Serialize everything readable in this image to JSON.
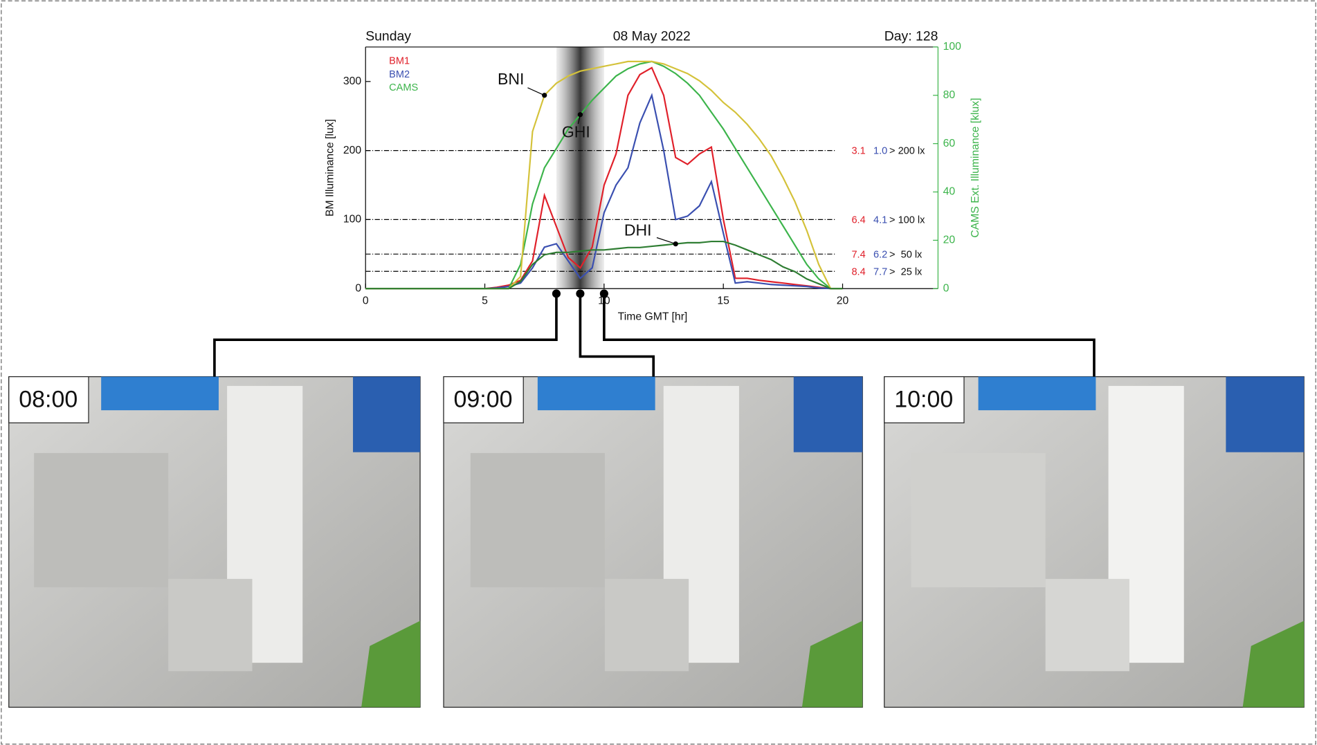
{
  "chart_data": {
    "type": "line",
    "header": {
      "left": "Sunday",
      "center": "08 May 2022",
      "right": "Day: 128"
    },
    "xlabel": "Time GMT [hr]",
    "ylabel": "BM Illuminance [lux]",
    "y2label": "CAMS Ext. Illuminance [klux]",
    "xlim": [
      0,
      24
    ],
    "xticks": [
      0,
      5,
      10,
      15,
      20
    ],
    "ylim": [
      0,
      350
    ],
    "yticks": [
      0,
      100,
      200,
      300
    ],
    "y2lim": [
      0,
      100
    ],
    "y2ticks": [
      0,
      20,
      40,
      60,
      80,
      100
    ],
    "y2color": "#3cb44b",
    "x": [
      0,
      0.5,
      1,
      1.5,
      2,
      2.5,
      3,
      3.5,
      4,
      4.5,
      5,
      5.5,
      6,
      6.5,
      7,
      7.5,
      8,
      8.5,
      9,
      9.5,
      10,
      10.5,
      11,
      11.5,
      12,
      12.5,
      13,
      13.5,
      14,
      14.5,
      15,
      15.5,
      16,
      16.5,
      17,
      17.5,
      18,
      18.5,
      19,
      19.5,
      20
    ],
    "legend": [
      {
        "name": "BM1",
        "color": "#e0202a"
      },
      {
        "name": "BM2",
        "color": "#3a4fb0"
      },
      {
        "name": "CAMS",
        "color": "#3cb44b"
      }
    ],
    "series": [
      {
        "name": "BM1",
        "color": "#e0202a",
        "values": [
          0,
          0,
          0,
          0,
          0,
          0,
          0,
          0,
          0,
          0,
          0,
          2,
          5,
          12,
          40,
          135,
          90,
          45,
          30,
          60,
          150,
          195,
          280,
          310,
          320,
          280,
          190,
          180,
          195,
          205,
          100,
          15,
          15,
          12,
          10,
          8,
          6,
          4,
          2,
          0,
          0
        ]
      },
      {
        "name": "BM2",
        "color": "#3a4fb0",
        "values": [
          0,
          0,
          0,
          0,
          0,
          0,
          0,
          0,
          0,
          0,
          0,
          1,
          3,
          8,
          30,
          60,
          65,
          40,
          15,
          30,
          110,
          150,
          175,
          240,
          280,
          200,
          100,
          105,
          120,
          155,
          80,
          8,
          10,
          8,
          6,
          5,
          4,
          3,
          1,
          0,
          0
        ]
      },
      {
        "name": "GHI",
        "color": "#3cb44b",
        "axis": "y2",
        "values": [
          0,
          0,
          0,
          0,
          0,
          0,
          0,
          0,
          0,
          0,
          0,
          0,
          0,
          10,
          35,
          50,
          58,
          66,
          72,
          78,
          83,
          88,
          91,
          93,
          94,
          92,
          89,
          85,
          80,
          73,
          66,
          58,
          50,
          42,
          34,
          26,
          18,
          10,
          4,
          0,
          0
        ]
      },
      {
        "name": "BNI",
        "color": "#d4c23a",
        "axis": "y2",
        "values": [
          0,
          0,
          0,
          0,
          0,
          0,
          0,
          0,
          0,
          0,
          0,
          0,
          0,
          5,
          65,
          80,
          85,
          88,
          90,
          91,
          92,
          93,
          94,
          94,
          94,
          93,
          91,
          89,
          86,
          82,
          77,
          73,
          68,
          62,
          55,
          46,
          36,
          24,
          10,
          0,
          0
        ]
      },
      {
        "name": "DHI",
        "color": "#2e7d32",
        "axis": "y2",
        "values": [
          0,
          0,
          0,
          0,
          0,
          0,
          0,
          0,
          0,
          0,
          0,
          0,
          0,
          3,
          10,
          14,
          15,
          15,
          15.5,
          16,
          16,
          16.5,
          17,
          17,
          17.5,
          18,
          18.5,
          19,
          19,
          19.5,
          19.5,
          18,
          16,
          14,
          12,
          9,
          7,
          4,
          2,
          0,
          0
        ]
      }
    ],
    "thresholds": [
      {
        "value": 200,
        "BM1": "3.1",
        "BM2": "1.0",
        "label": "> 200 lx"
      },
      {
        "value": 100,
        "BM1": "6.4",
        "BM2": "4.1",
        "label": "> 100 lx"
      },
      {
        "value": 50,
        "BM1": "7.4",
        "BM2": "6.2",
        "label": ">  50 lx"
      },
      {
        "value": 25,
        "BM1": "8.4",
        "BM2": "7.7",
        "label": ">  25 lx"
      }
    ],
    "highlight": [
      8,
      10
    ],
    "snapshots": [
      {
        "x": 8,
        "label": "08:00"
      },
      {
        "x": 9,
        "label": "09:00"
      },
      {
        "x": 10,
        "label": "10:00"
      }
    ]
  }
}
